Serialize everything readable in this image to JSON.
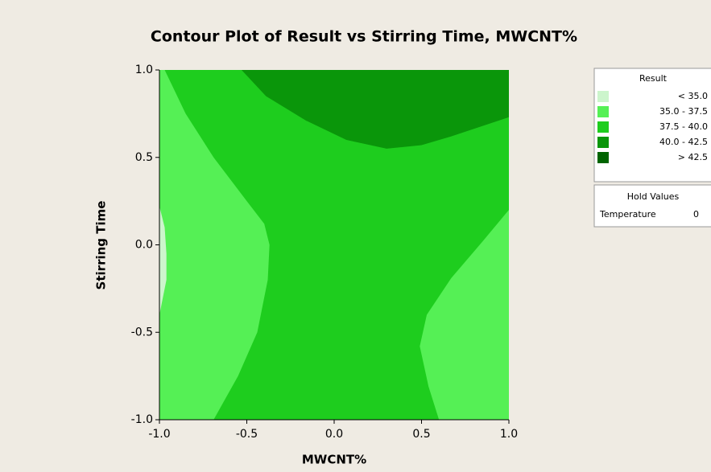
{
  "chart_data": {
    "type": "contour",
    "title": "Contour Plot of Result vs Stirring Time, MWCNT%",
    "xlabel": "MWCNT%",
    "ylabel": "Stirring Time",
    "xlim": [
      -1,
      1
    ],
    "ylim": [
      -1,
      1
    ],
    "xticks": [
      {
        "value": -1,
        "label": "-1.0"
      },
      {
        "value": -0.5,
        "label": "-0.5"
      },
      {
        "value": 0,
        "label": "0.0"
      },
      {
        "value": 0.5,
        "label": "0.5"
      },
      {
        "value": 1,
        "label": "1.0"
      }
    ],
    "yticks": [
      {
        "value": -1,
        "label": "-1.0"
      },
      {
        "value": -0.5,
        "label": "-0.5"
      },
      {
        "value": 0,
        "label": "0.0"
      },
      {
        "value": 0.5,
        "label": "0.5"
      },
      {
        "value": 1,
        "label": "1.0"
      }
    ],
    "legend": {
      "title": "Result",
      "entries": [
        {
          "label": "< 35.0",
          "color": "#ccf5cc"
        },
        {
          "label": "35.0 - 37.5",
          "color": "#55f055"
        },
        {
          "label": "37.5 - 40.0",
          "color": "#1ecd1e"
        },
        {
          "label": "40.0 - 42.5",
          "color": "#0a960a"
        },
        {
          "label": "> 42.5",
          "color": "#006400"
        }
      ]
    },
    "hold_values": {
      "title": "Hold Values",
      "items": [
        {
          "name": "Temperature",
          "value": 0
        }
      ]
    },
    "regions": [
      {
        "color": "#1ecd1e",
        "x": [
          -1,
          1,
          1,
          -1
        ],
        "y": [
          -1,
          -1,
          1,
          1
        ]
      },
      {
        "color": "#55f055",
        "x": [
          -1,
          -0.97,
          -0.85,
          -0.69,
          -0.5,
          -0.4,
          -0.37,
          -0.38,
          -0.44,
          -0.55,
          -0.69,
          -1
        ],
        "y": [
          1,
          1,
          0.75,
          0.5,
          0.25,
          0.12,
          0,
          -0.2,
          -0.5,
          -0.75,
          -1,
          -1
        ]
      },
      {
        "color": "#ccf5cc",
        "x": [
          -1,
          -0.97,
          -0.96,
          -0.96,
          -0.98,
          -1
        ],
        "y": [
          0.22,
          0.1,
          -0.05,
          -0.2,
          -0.3,
          -0.4
        ]
      },
      {
        "color": "#55f055",
        "x": [
          1,
          0.85,
          0.67,
          0.53,
          0.49,
          0.54,
          0.6,
          1
        ],
        "y": [
          0.2,
          0.02,
          -0.19,
          -0.4,
          -0.58,
          -0.81,
          -1,
          -1
        ]
      },
      {
        "color": "#0a960a",
        "x": [
          -0.53,
          -0.39,
          -0.16,
          0.07,
          0.3,
          0.5,
          0.67,
          1,
          1
        ],
        "y": [
          1,
          0.85,
          0.71,
          0.6,
          0.55,
          0.57,
          0.62,
          0.73,
          1
        ]
      }
    ]
  }
}
